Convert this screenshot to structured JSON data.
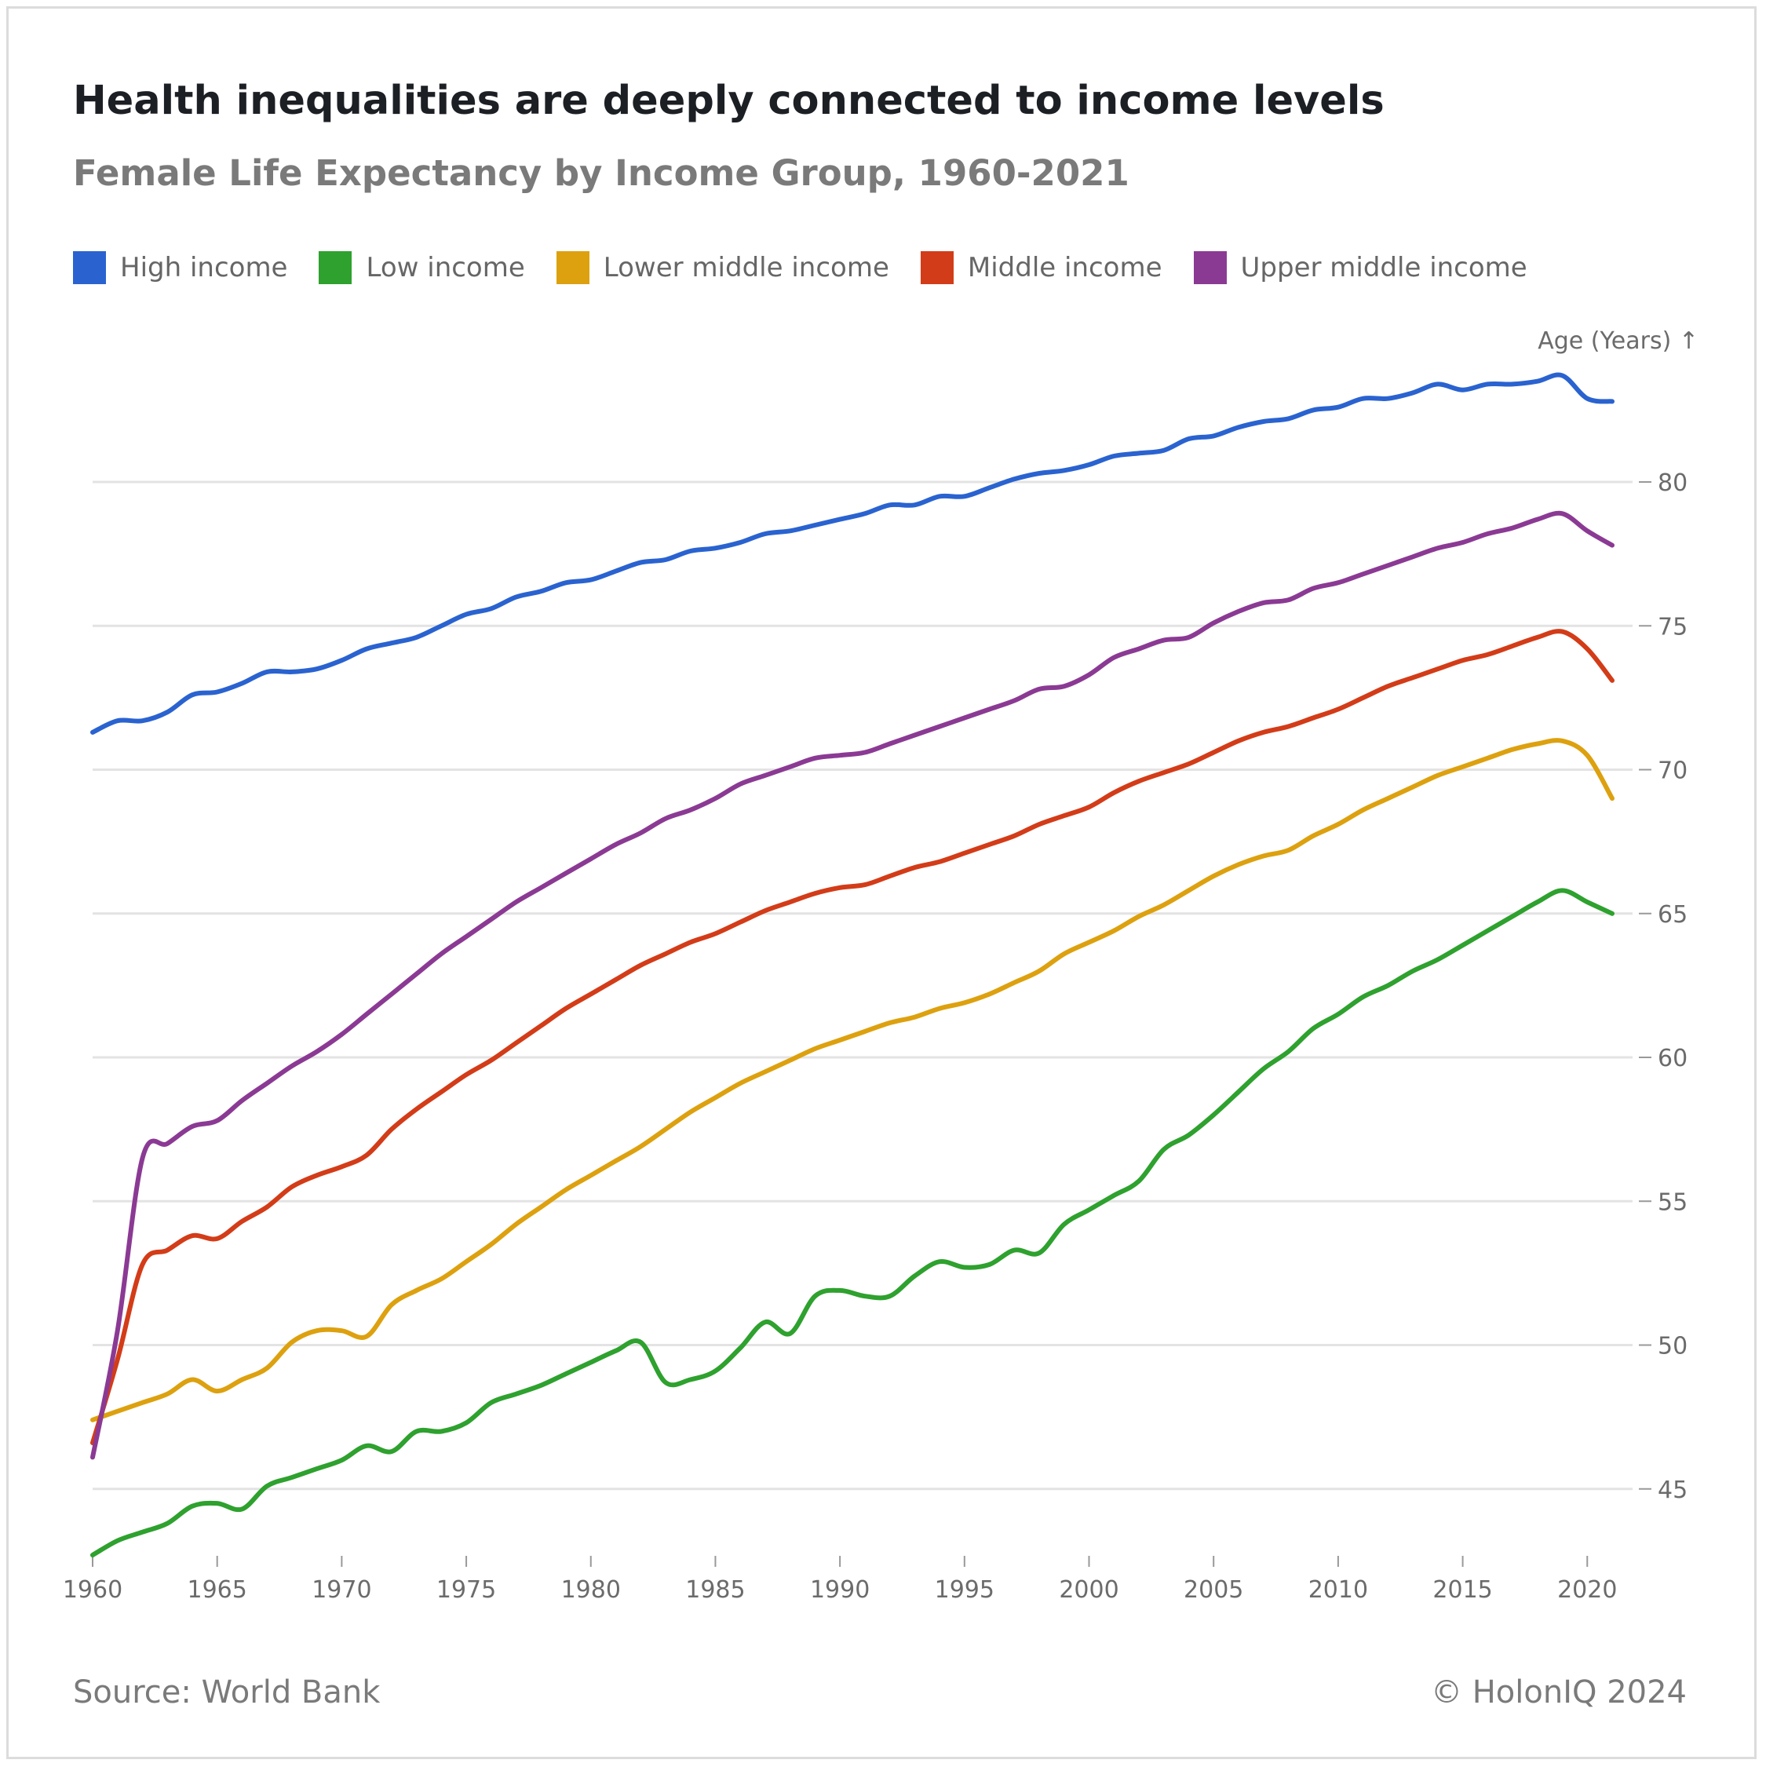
{
  "title": "Health inequalities are deeply connected to income levels",
  "subtitle": "Female Life Expectancy by Income Group, 1960-2021",
  "source": "Source: World Bank",
  "credit": "© HolonIQ 2024",
  "chart_data": {
    "type": "line",
    "title": "Health inequalities are deeply connected to income levels",
    "subtitle": "Female Life Expectancy by Income Group, 1960-2021",
    "xlabel": "",
    "ylabel": "Age (Years) ↑",
    "xlim": [
      1960,
      2021
    ],
    "ylim": [
      42.5,
      85
    ],
    "x_ticks": [
      1960,
      1965,
      1970,
      1975,
      1980,
      1985,
      1990,
      1995,
      2000,
      2005,
      2010,
      2015,
      2020
    ],
    "y_ticks": [
      45,
      50,
      55,
      60,
      65,
      70,
      75,
      80
    ],
    "y_axis_position": "right",
    "grid": true,
    "legend_position": "top-left",
    "x": [
      1960,
      1961,
      1962,
      1963,
      1964,
      1965,
      1966,
      1967,
      1968,
      1969,
      1970,
      1971,
      1972,
      1973,
      1974,
      1975,
      1976,
      1977,
      1978,
      1979,
      1980,
      1981,
      1982,
      1983,
      1984,
      1985,
      1986,
      1987,
      1988,
      1989,
      1990,
      1991,
      1992,
      1993,
      1994,
      1995,
      1996,
      1997,
      1998,
      1999,
      2000,
      2001,
      2002,
      2003,
      2004,
      2005,
      2006,
      2007,
      2008,
      2009,
      2010,
      2011,
      2012,
      2013,
      2014,
      2015,
      2016,
      2017,
      2018,
      2019,
      2020,
      2021
    ],
    "series": [
      {
        "name": "High income",
        "color": "#2a63d0",
        "values": [
          71.3,
          71.7,
          71.7,
          72.0,
          72.6,
          72.7,
          73.0,
          73.4,
          73.4,
          73.5,
          73.8,
          74.2,
          74.4,
          74.6,
          75.0,
          75.4,
          75.6,
          76.0,
          76.2,
          76.5,
          76.6,
          76.9,
          77.2,
          77.3,
          77.6,
          77.7,
          77.9,
          78.2,
          78.3,
          78.5,
          78.7,
          78.9,
          79.2,
          79.2,
          79.5,
          79.5,
          79.8,
          80.1,
          80.3,
          80.4,
          80.6,
          80.9,
          81.0,
          81.1,
          81.5,
          81.6,
          81.9,
          82.1,
          82.2,
          82.5,
          82.6,
          82.9,
          82.9,
          83.1,
          83.4,
          83.2,
          83.4,
          83.4,
          83.5,
          83.7,
          82.9,
          82.8
        ]
      },
      {
        "name": "Low income",
        "color": "#2ea12e",
        "values": [
          42.7,
          43.2,
          43.5,
          43.8,
          44.4,
          44.5,
          44.3,
          45.1,
          45.4,
          45.7,
          46.0,
          46.5,
          46.3,
          47.0,
          47.0,
          47.3,
          48.0,
          48.3,
          48.6,
          49.0,
          49.4,
          49.8,
          50.1,
          48.7,
          48.8,
          49.1,
          49.9,
          50.8,
          50.4,
          51.7,
          51.9,
          51.7,
          51.7,
          52.4,
          52.9,
          52.7,
          52.8,
          53.3,
          53.2,
          54.2,
          54.7,
          55.2,
          55.7,
          56.8,
          57.3,
          58.0,
          58.8,
          59.6,
          60.2,
          61.0,
          61.5,
          62.1,
          62.5,
          63.0,
          63.4,
          63.9,
          64.4,
          64.9,
          65.4,
          65.8,
          65.4,
          65.0
        ]
      },
      {
        "name": "Lower middle income",
        "color": "#dda10f",
        "values": [
          47.4,
          47.7,
          48.0,
          48.3,
          48.8,
          48.4,
          48.8,
          49.2,
          50.1,
          50.5,
          50.5,
          50.3,
          51.4,
          51.9,
          52.3,
          52.9,
          53.5,
          54.2,
          54.8,
          55.4,
          55.9,
          56.4,
          56.9,
          57.5,
          58.1,
          58.6,
          59.1,
          59.5,
          59.9,
          60.3,
          60.6,
          60.9,
          61.2,
          61.4,
          61.7,
          61.9,
          62.2,
          62.6,
          63.0,
          63.6,
          64.0,
          64.4,
          64.9,
          65.3,
          65.8,
          66.3,
          66.7,
          67.0,
          67.2,
          67.7,
          68.1,
          68.6,
          69.0,
          69.4,
          69.8,
          70.1,
          70.4,
          70.7,
          70.9,
          71.0,
          70.5,
          69.0
        ]
      },
      {
        "name": "Middle income",
        "color": "#d33c18",
        "values": [
          46.6,
          49.5,
          52.8,
          53.3,
          53.8,
          53.7,
          54.3,
          54.8,
          55.5,
          55.9,
          56.2,
          56.6,
          57.5,
          58.2,
          58.8,
          59.4,
          59.9,
          60.5,
          61.1,
          61.7,
          62.2,
          62.7,
          63.2,
          63.6,
          64.0,
          64.3,
          64.7,
          65.1,
          65.4,
          65.7,
          65.9,
          66.0,
          66.3,
          66.6,
          66.8,
          67.1,
          67.4,
          67.7,
          68.1,
          68.4,
          68.7,
          69.2,
          69.6,
          69.9,
          70.2,
          70.6,
          71.0,
          71.3,
          71.5,
          71.8,
          72.1,
          72.5,
          72.9,
          73.2,
          73.5,
          73.8,
          74.0,
          74.3,
          74.6,
          74.8,
          74.2,
          73.1
        ]
      },
      {
        "name": "Upper middle income",
        "color": "#8b3a94",
        "values": [
          46.1,
          50.5,
          56.5,
          57.0,
          57.6,
          57.8,
          58.5,
          59.1,
          59.7,
          60.2,
          60.8,
          61.5,
          62.2,
          62.9,
          63.6,
          64.2,
          64.8,
          65.4,
          65.9,
          66.4,
          66.9,
          67.4,
          67.8,
          68.3,
          68.6,
          69.0,
          69.5,
          69.8,
          70.1,
          70.4,
          70.5,
          70.6,
          70.9,
          71.2,
          71.5,
          71.8,
          72.1,
          72.4,
          72.8,
          72.9,
          73.3,
          73.9,
          74.2,
          74.5,
          74.6,
          75.1,
          75.5,
          75.8,
          75.9,
          76.3,
          76.5,
          76.8,
          77.1,
          77.4,
          77.7,
          77.9,
          78.2,
          78.4,
          78.7,
          78.9,
          78.3,
          77.8
        ]
      }
    ]
  }
}
